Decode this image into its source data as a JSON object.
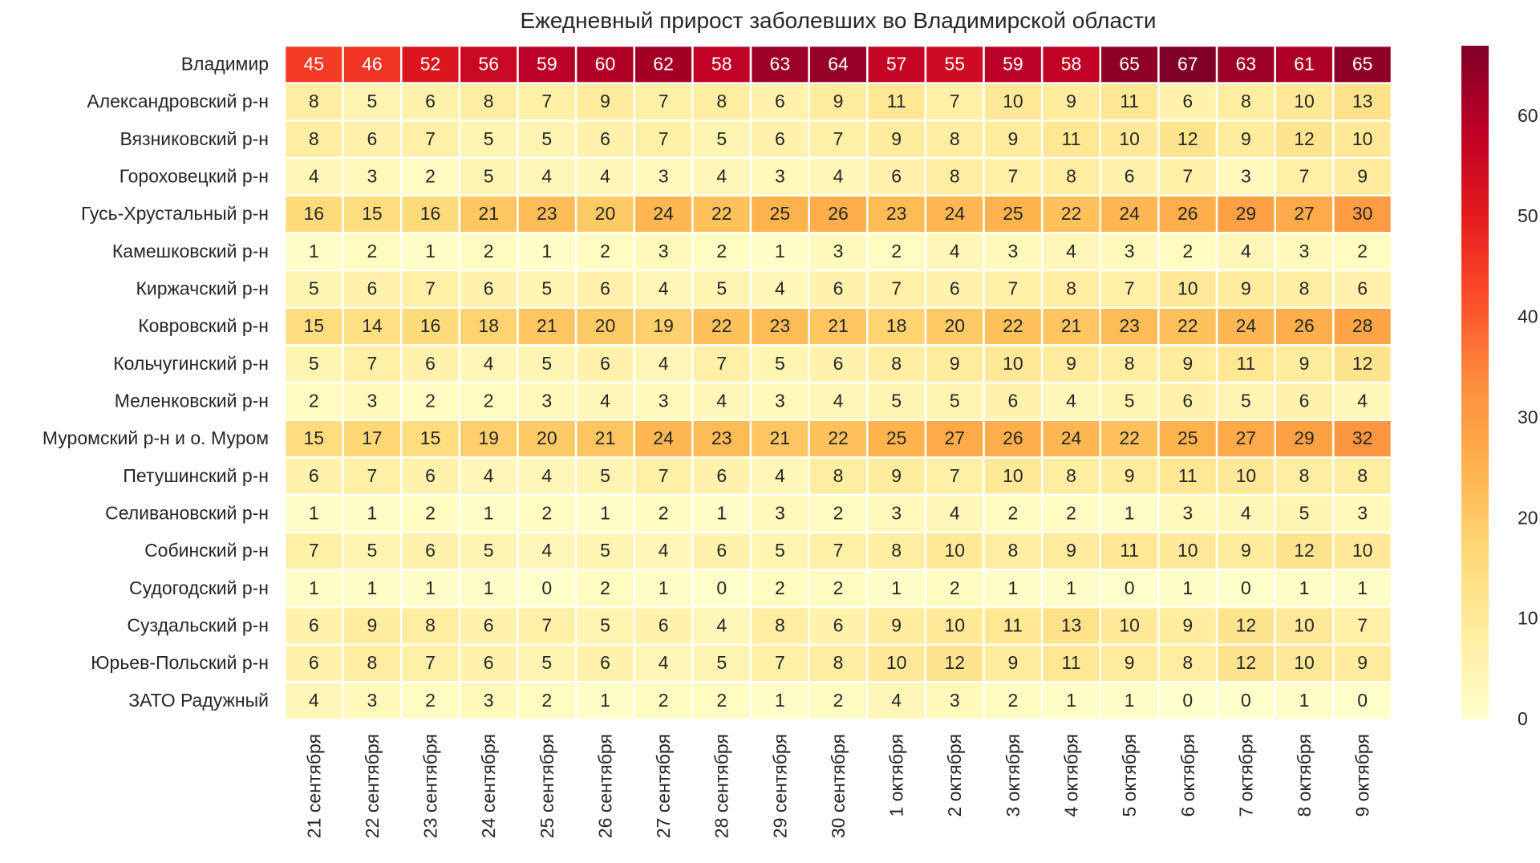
{
  "chart_data": {
    "type": "heatmap",
    "title": "Ежедневный прирост заболевших во Владимирской области",
    "xlabel": "",
    "ylabel": "",
    "value_range": [
      0,
      67
    ],
    "colormap": "YlOrRd",
    "colorbar_ticks": [
      0,
      10,
      20,
      30,
      40,
      50,
      60
    ],
    "legend_position": "right",
    "grid": false,
    "x_categories": [
      "21 сентября",
      "22 сентября",
      "23 сентября",
      "24 сентября",
      "25 сентября",
      "26 сентября",
      "27 сентября",
      "28 сентября",
      "29 сентября",
      "30 сентября",
      "1 октября",
      "2 октября",
      "3 октября",
      "4 октября",
      "5 октября",
      "6 октября",
      "7 октября",
      "8 октября",
      "9 октября"
    ],
    "y_categories": [
      "Владимир",
      "Александровский р-н",
      "Вязниковский р-н",
      "Гороховецкий р-н",
      "Гусь-Хрустальный р-н",
      "Камешковский р-н",
      "Киржачский р-н",
      "Ковровский р-н",
      "Кольчугинский р-н",
      "Меленковский р-н",
      "Муромский р-н и о. Муром",
      "Петушинский р-н",
      "Селивановский р-н",
      "Собинский р-н",
      "Судогодский р-н",
      "Суздальский р-н",
      "Юрьев-Польский р-н",
      "ЗАТО Радужный"
    ],
    "values": [
      [
        45,
        46,
        52,
        56,
        59,
        60,
        62,
        58,
        63,
        64,
        57,
        55,
        59,
        58,
        65,
        67,
        63,
        61,
        65
      ],
      [
        8,
        5,
        6,
        8,
        7,
        9,
        7,
        8,
        6,
        9,
        11,
        7,
        10,
        9,
        11,
        6,
        8,
        10,
        13
      ],
      [
        8,
        6,
        7,
        5,
        5,
        6,
        7,
        5,
        6,
        7,
        9,
        8,
        9,
        11,
        10,
        12,
        9,
        12,
        10
      ],
      [
        4,
        3,
        2,
        5,
        4,
        4,
        3,
        4,
        3,
        4,
        6,
        8,
        7,
        8,
        6,
        7,
        3,
        7,
        9
      ],
      [
        16,
        15,
        16,
        21,
        23,
        20,
        24,
        22,
        25,
        26,
        23,
        24,
        25,
        22,
        24,
        26,
        29,
        27,
        30
      ],
      [
        1,
        2,
        1,
        2,
        1,
        2,
        3,
        2,
        1,
        3,
        2,
        4,
        3,
        4,
        3,
        2,
        4,
        3,
        2
      ],
      [
        5,
        6,
        7,
        6,
        5,
        6,
        4,
        5,
        4,
        6,
        7,
        6,
        7,
        8,
        7,
        10,
        9,
        8,
        6
      ],
      [
        15,
        14,
        16,
        18,
        21,
        20,
        19,
        22,
        23,
        21,
        18,
        20,
        22,
        21,
        23,
        22,
        24,
        26,
        28
      ],
      [
        5,
        7,
        6,
        4,
        5,
        6,
        4,
        7,
        5,
        6,
        8,
        9,
        10,
        9,
        8,
        9,
        11,
        9,
        12
      ],
      [
        2,
        3,
        2,
        2,
        3,
        4,
        3,
        4,
        3,
        4,
        5,
        5,
        6,
        4,
        5,
        6,
        5,
        6,
        4
      ],
      [
        15,
        17,
        15,
        19,
        20,
        21,
        24,
        23,
        21,
        22,
        25,
        27,
        26,
        24,
        22,
        25,
        27,
        29,
        32
      ],
      [
        6,
        7,
        6,
        4,
        4,
        5,
        7,
        6,
        4,
        8,
        9,
        7,
        10,
        8,
        9,
        11,
        10,
        8,
        8
      ],
      [
        1,
        1,
        2,
        1,
        2,
        1,
        2,
        1,
        3,
        2,
        3,
        4,
        2,
        2,
        1,
        3,
        4,
        5,
        3
      ],
      [
        7,
        5,
        6,
        5,
        4,
        5,
        4,
        6,
        5,
        7,
        8,
        10,
        8,
        9,
        11,
        10,
        9,
        12,
        10
      ],
      [
        1,
        1,
        1,
        1,
        0,
        2,
        1,
        0,
        2,
        2,
        1,
        2,
        1,
        1,
        0,
        1,
        0,
        1,
        1
      ],
      [
        6,
        9,
        8,
        6,
        7,
        5,
        6,
        4,
        8,
        6,
        9,
        10,
        11,
        13,
        10,
        9,
        12,
        10,
        7
      ],
      [
        6,
        8,
        7,
        6,
        5,
        6,
        4,
        5,
        7,
        8,
        10,
        12,
        9,
        11,
        9,
        8,
        12,
        10,
        9
      ],
      [
        4,
        3,
        2,
        3,
        2,
        1,
        2,
        2,
        1,
        2,
        4,
        3,
        2,
        1,
        1,
        0,
        0,
        1,
        0
      ]
    ]
  }
}
